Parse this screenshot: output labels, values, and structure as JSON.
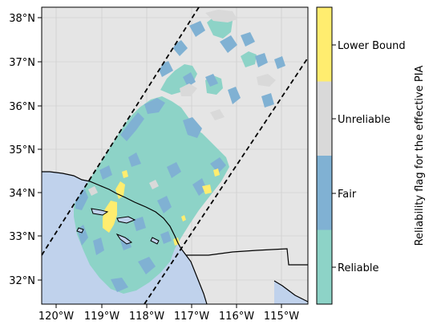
{
  "map": {
    "x_ticks": [
      "120°W",
      "119°W",
      "118°W",
      "117°W",
      "116°W",
      "115°W"
    ],
    "y_ticks": [
      "32°N",
      "33°N",
      "34°N",
      "35°N",
      "36°N",
      "37°N",
      "38°N"
    ],
    "lon_range": [
      -120.4,
      -114.4
    ],
    "lat_range": [
      31.45,
      38.25
    ],
    "colors": {
      "background": "#e5e5e5",
      "ocean": "#c0d2ec",
      "reliable": "#8dd3c7",
      "fair": "#80b1d3",
      "unreliable": "#d9d9d9",
      "lower_bound": "#ffed6f"
    }
  },
  "colorbar": {
    "label": "Reliability flag for the effective PIA",
    "categories": [
      "Reliable",
      "Fair",
      "Unreliable",
      "Lower Bound"
    ],
    "colors": [
      "#8dd3c7",
      "#80b1d3",
      "#d9d9d9",
      "#ffed6f"
    ]
  }
}
